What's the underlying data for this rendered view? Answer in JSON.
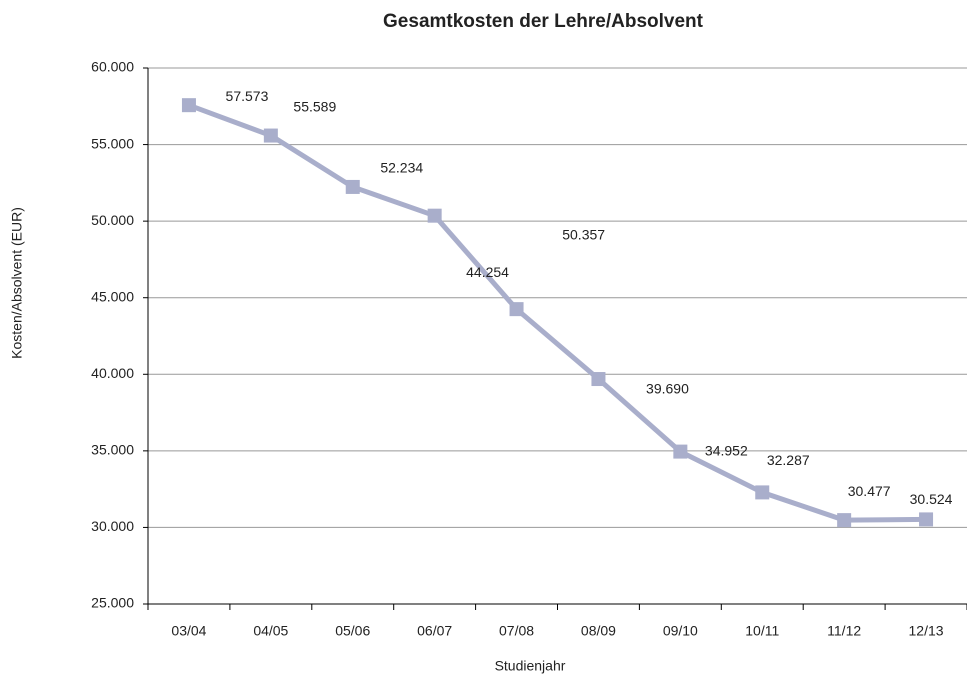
{
  "chart_data": {
    "type": "line",
    "title": "Gesamtkosten der Lehre/Absolvent",
    "x_label": "Studienjahr",
    "y_label": "Kosten/Absolvent (EUR)",
    "categories": [
      "03/04",
      "04/05",
      "05/06",
      "06/07",
      "07/08",
      "08/09",
      "09/10",
      "10/11",
      "11/12",
      "12/13"
    ],
    "series": [
      {
        "name": "Gesamtkosten der Lehre/Absolvent",
        "color": "#a9aecb",
        "values": [
          57573,
          55589,
          52234,
          50357,
          44254,
          39690,
          34952,
          32287,
          30477,
          30524
        ],
        "value_labels": [
          "57.573",
          "55.589",
          "52.234",
          "50.357",
          "44.254",
          "39.690",
          "34.952",
          "32.287",
          "30.477",
          "30.524"
        ]
      }
    ],
    "ylim": [
      25000,
      60000
    ],
    "yticks": [
      {
        "value": 25000,
        "label": "25.000"
      },
      {
        "value": 30000,
        "label": "30.000"
      },
      {
        "value": 35000,
        "label": "35.000"
      },
      {
        "value": 40000,
        "label": "40.000"
      },
      {
        "value": 45000,
        "label": "45.000"
      },
      {
        "value": 50000,
        "label": "50.000"
      },
      {
        "value": 55000,
        "label": "55.000"
      },
      {
        "value": 60000,
        "label": "60.000"
      }
    ],
    "grid": true
  }
}
